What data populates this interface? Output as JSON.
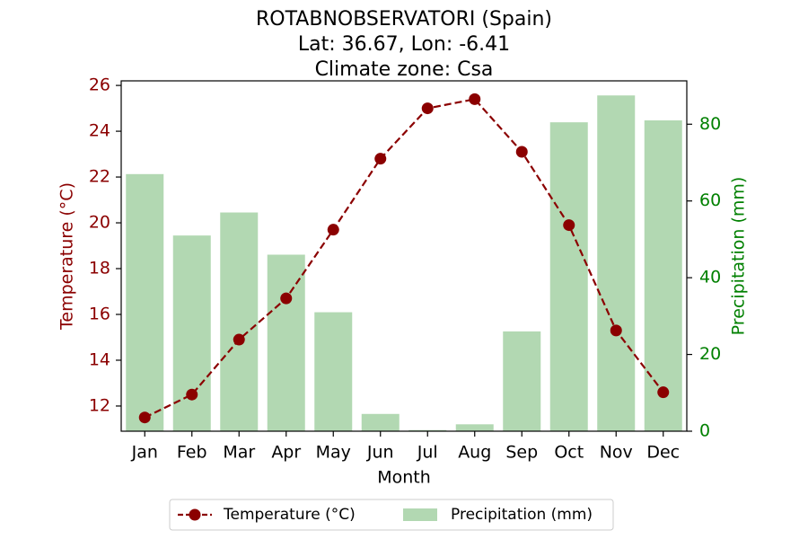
{
  "title_lines": [
    "ROTABNOBSERVATORI (Spain)",
    "Lat: 36.67, Lon: -6.41",
    "Climate zone: Csa"
  ],
  "colors": {
    "temperature": "#8b0000",
    "precipitation": "#b2d8b2",
    "temp_axis": "#8b0000",
    "precip_axis": "#008000"
  },
  "legend": {
    "placement": "bottom-center",
    "temperature_label": "Temperature (°C)",
    "precipitation_label": "Precipitation (mm)"
  },
  "chart_data": {
    "type": "bar+line",
    "categories": [
      "Jan",
      "Feb",
      "Mar",
      "Apr",
      "May",
      "Jun",
      "Jul",
      "Aug",
      "Sep",
      "Oct",
      "Nov",
      "Dec"
    ],
    "xlabel": "Month",
    "series": [
      {
        "name": "Temperature (°C)",
        "type": "line",
        "axis": "left",
        "values": [
          11.5,
          12.5,
          14.9,
          16.7,
          19.7,
          22.8,
          25.0,
          25.4,
          23.1,
          19.9,
          15.3,
          12.6
        ]
      },
      {
        "name": "Precipitation (mm)",
        "type": "bar",
        "axis": "right",
        "values": [
          67,
          51,
          57,
          46,
          31,
          4.5,
          0.3,
          1.8,
          26,
          80.5,
          87.5,
          81
        ]
      }
    ],
    "y_left": {
      "label": "Temperature (°C)",
      "ylim": [
        10.9,
        26.2
      ],
      "ticks": [
        12,
        14,
        16,
        18,
        20,
        22,
        24,
        26
      ]
    },
    "y_right": {
      "label": "Precipitation (mm)",
      "ylim": [
        0,
        91.3
      ],
      "ticks": [
        0,
        20,
        40,
        60,
        80
      ]
    },
    "grid": false
  }
}
